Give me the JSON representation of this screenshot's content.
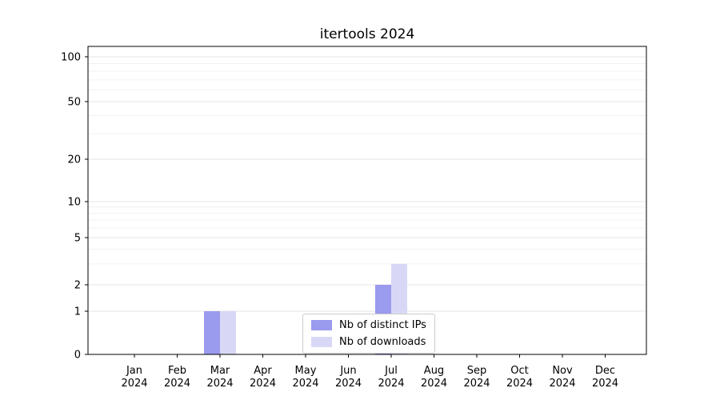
{
  "chart_data": {
    "type": "bar",
    "title": "itertools 2024",
    "categories": [
      "Jan",
      "Feb",
      "Mar",
      "Apr",
      "May",
      "Jun",
      "Jul",
      "Aug",
      "Sep",
      "Oct",
      "Nov",
      "Dec"
    ],
    "year": "2024",
    "yscale": "symlog",
    "yticks": [
      0,
      1,
      2,
      5,
      10,
      20,
      50,
      100
    ],
    "ylim": [
      0,
      110
    ],
    "grid": "horizontal",
    "legend_position": "lower center",
    "series": [
      {
        "name": "Nb of distinct IPs",
        "color": "#9a9aee",
        "values": [
          0,
          0,
          1,
          0,
          0,
          0,
          2,
          0,
          0,
          0,
          0,
          0
        ]
      },
      {
        "name": "Nb of downloads",
        "color": "#d8d8f6",
        "values": [
          0,
          0,
          1,
          0,
          0,
          0,
          3,
          0,
          0,
          0,
          0,
          0
        ]
      }
    ]
  }
}
